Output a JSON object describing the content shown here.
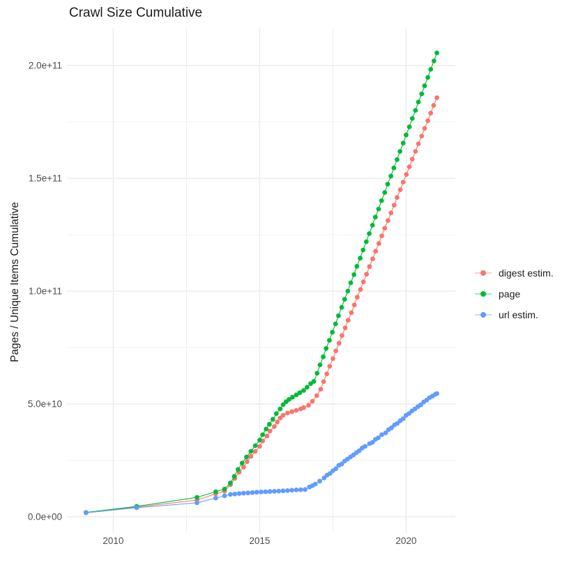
{
  "title": "Crawl Size Cumulative",
  "chart_data": {
    "type": "scatter",
    "title": "Crawl Size Cumulative",
    "xlabel": "",
    "ylabel": "Pages / Unique Items Cumulative",
    "grid": true,
    "legend_position": "right",
    "panel_background": "#FFFFFF",
    "grid_color": "#EBEBEB",
    "xlim": [
      2008.42,
      2021.68
    ],
    "ylim": [
      0,
      215000000000
    ],
    "x_axis": {
      "tick_labels": [
        "2010",
        "2015",
        "2020"
      ],
      "tick_values": [
        2010,
        2015,
        2020
      ],
      "minor_values": [
        2012.5,
        2017.5
      ]
    },
    "y_axis": {
      "tick_labels": [
        "0.0e+00",
        "5.0e+10",
        "1.0e+11",
        "1.5e+11",
        "2.0e+11"
      ],
      "tick_values": [
        0,
        50000000000.0,
        100000000000.0,
        150000000000.0,
        200000000000.0
      ],
      "minor_values": [
        25000000000.0,
        75000000000.0,
        125000000000.0,
        175000000000.0
      ]
    },
    "legend": {
      "items": [
        {
          "label": "digest estim.",
          "color": "#F8766D"
        },
        {
          "label": "page",
          "color": "#00BA38"
        },
        {
          "label": "url estim.",
          "color": "#619CFF"
        }
      ]
    },
    "series": [
      {
        "name": "digest estim.",
        "color": "#F8766D",
        "points": [
          [
            2009.07,
            1800000000.0
          ],
          [
            2010.8,
            4300000000.0
          ],
          [
            2012.86,
            7400000000.0
          ],
          [
            2013.5,
            10200000000.0
          ],
          [
            2013.8,
            11400000000.0
          ],
          [
            2014.0,
            14200000000.0
          ],
          [
            2014.15,
            17000000000.0
          ],
          [
            2014.3,
            19800000000.0
          ],
          [
            2014.45,
            22000000000.0
          ],
          [
            2014.57,
            24400000000.0
          ],
          [
            2014.7,
            26800000000.0
          ],
          [
            2014.85,
            29000000000.0
          ],
          [
            2015.0,
            31200000000.0
          ],
          [
            2015.1,
            33600000000.0
          ],
          [
            2015.25,
            35800000000.0
          ],
          [
            2015.35,
            38000000000.0
          ],
          [
            2015.5,
            40000000000.0
          ],
          [
            2015.6,
            42000000000.0
          ],
          [
            2015.7,
            43800000000.0
          ],
          [
            2015.8,
            45000000000.0
          ],
          [
            2015.95,
            46000000000.0
          ],
          [
            2016.1,
            46600000000.0
          ],
          [
            2016.25,
            47200000000.0
          ],
          [
            2016.4,
            47800000000.0
          ],
          [
            2016.5,
            48400000000.0
          ],
          [
            2016.67,
            49400000000.0
          ],
          [
            2016.8,
            51200000000.0
          ],
          [
            2016.95,
            53700000000.0
          ],
          [
            2017.08,
            56500000000.0
          ],
          [
            2017.18,
            59900000000.0
          ],
          [
            2017.29,
            63300000000.0
          ],
          [
            2017.39,
            66700000000.0
          ],
          [
            2017.5,
            70100000000.0
          ],
          [
            2017.6,
            73500000000.0
          ],
          [
            2017.71,
            76900000000.0
          ],
          [
            2017.81,
            80300000000.0
          ],
          [
            2017.92,
            83700000000.0
          ],
          [
            2018.02,
            87100000000.0
          ],
          [
            2018.13,
            90500000000.0
          ],
          [
            2018.23,
            93900000000.0
          ],
          [
            2018.33,
            97300000000.0
          ],
          [
            2018.44,
            100700000000.0
          ],
          [
            2018.54,
            104100000000.0
          ],
          [
            2018.65,
            107500000000.0
          ],
          [
            2018.75,
            110900000000.0
          ],
          [
            2018.86,
            114300000000.0
          ],
          [
            2018.96,
            117700000000.0
          ],
          [
            2019.07,
            121100000000.0
          ],
          [
            2019.17,
            124500000000.0
          ],
          [
            2019.27,
            127900000000.0
          ],
          [
            2019.38,
            131300000000.0
          ],
          [
            2019.48,
            134700000000.0
          ],
          [
            2019.59,
            138100000000.0
          ],
          [
            2019.69,
            141500000000.0
          ],
          [
            2019.8,
            144900000000.0
          ],
          [
            2019.9,
            148300000000.0
          ],
          [
            2020.01,
            151700000000.0
          ],
          [
            2020.11,
            155100000000.0
          ],
          [
            2020.21,
            158500000000.0
          ],
          [
            2020.32,
            161900000000.0
          ],
          [
            2020.42,
            165300000000.0
          ],
          [
            2020.53,
            168700000000.0
          ],
          [
            2020.63,
            172100000000.0
          ],
          [
            2020.74,
            175500000000.0
          ],
          [
            2020.84,
            178900000000.0
          ],
          [
            2020.94,
            182300000000.0
          ],
          [
            2021.05,
            185700000000.0
          ]
        ]
      },
      {
        "name": "page",
        "color": "#00BA38",
        "points": [
          [
            2009.07,
            1900000000.0
          ],
          [
            2010.8,
            4600000000.0
          ],
          [
            2012.86,
            8600000000.0
          ],
          [
            2013.5,
            11100000000.0
          ],
          [
            2013.8,
            12300000000.0
          ],
          [
            2014.0,
            15000000000.0
          ],
          [
            2014.13,
            17900000000.0
          ],
          [
            2014.26,
            21000000000.0
          ],
          [
            2014.4,
            23800000000.0
          ],
          [
            2014.55,
            26500000000.0
          ],
          [
            2014.7,
            29000000000.0
          ],
          [
            2014.85,
            31500000000.0
          ],
          [
            2015.0,
            34000000000.0
          ],
          [
            2015.1,
            36400000000.0
          ],
          [
            2015.22,
            38900000000.0
          ],
          [
            2015.33,
            41000000000.0
          ],
          [
            2015.45,
            43200000000.0
          ],
          [
            2015.57,
            45700000000.0
          ],
          [
            2015.7,
            47800000000.0
          ],
          [
            2015.8,
            49700000000.0
          ],
          [
            2015.9,
            51000000000.0
          ],
          [
            2016.0,
            52000000000.0
          ],
          [
            2016.12,
            53000000000.0
          ],
          [
            2016.25,
            54000000000.0
          ],
          [
            2016.37,
            55000000000.0
          ],
          [
            2016.5,
            56000000000.0
          ],
          [
            2016.62,
            57400000000.0
          ],
          [
            2016.74,
            59000000000.0
          ],
          [
            2016.85,
            60000000000.0
          ],
          [
            2016.96,
            63600000000.0
          ],
          [
            2017.06,
            67300000000.0
          ],
          [
            2017.17,
            70900000000.0
          ],
          [
            2017.27,
            74600000000.0
          ],
          [
            2017.38,
            78200000000.0
          ],
          [
            2017.48,
            81800000000.0
          ],
          [
            2017.59,
            85500000000.0
          ],
          [
            2017.69,
            89100000000.0
          ],
          [
            2017.8,
            92800000000.0
          ],
          [
            2017.9,
            96400000000.0
          ],
          [
            2018.01,
            100000000000.0
          ],
          [
            2018.11,
            103700000000.0
          ],
          [
            2018.22,
            107300000000.0
          ],
          [
            2018.32,
            111000000000.0
          ],
          [
            2018.43,
            114600000000.0
          ],
          [
            2018.53,
            118200000000.0
          ],
          [
            2018.64,
            121900000000.0
          ],
          [
            2018.74,
            125500000000.0
          ],
          [
            2018.85,
            129200000000.0
          ],
          [
            2018.95,
            132800000000.0
          ],
          [
            2019.06,
            136400000000.0
          ],
          [
            2019.16,
            140100000000.0
          ],
          [
            2019.27,
            143700000000.0
          ],
          [
            2019.37,
            147400000000.0
          ],
          [
            2019.48,
            151000000000.0
          ],
          [
            2019.58,
            154600000000.0
          ],
          [
            2019.69,
            158300000000.0
          ],
          [
            2019.79,
            161900000000.0
          ],
          [
            2019.9,
            165600000000.0
          ],
          [
            2020.0,
            169200000000.0
          ],
          [
            2020.11,
            172800000000.0
          ],
          [
            2020.21,
            176500000000.0
          ],
          [
            2020.32,
            180100000000.0
          ],
          [
            2020.42,
            183800000000.0
          ],
          [
            2020.53,
            187400000000.0
          ],
          [
            2020.63,
            191000000000.0
          ],
          [
            2020.74,
            194700000000.0
          ],
          [
            2020.84,
            198300000000.0
          ],
          [
            2020.95,
            202000000000.0
          ],
          [
            2021.05,
            205600000000.0
          ]
        ]
      },
      {
        "name": "url estim.",
        "color": "#619CFF",
        "points": [
          [
            2009.07,
            1800000000.0
          ],
          [
            2010.8,
            4000000000.0
          ],
          [
            2012.86,
            6200000000.0
          ],
          [
            2013.5,
            8300000000.0
          ],
          [
            2013.8,
            9300000000.0
          ],
          [
            2014.0,
            9900000000.0
          ],
          [
            2014.15,
            10100000000.0
          ],
          [
            2014.3,
            10300000000.0
          ],
          [
            2014.45,
            10450000000.0
          ],
          [
            2014.6,
            10600000000.0
          ],
          [
            2014.75,
            10750000000.0
          ],
          [
            2014.9,
            10900000000.0
          ],
          [
            2015.05,
            11000000000.0
          ],
          [
            2015.2,
            11100000000.0
          ],
          [
            2015.35,
            11200000000.0
          ],
          [
            2015.5,
            11300000000.0
          ],
          [
            2015.65,
            11400000000.0
          ],
          [
            2015.8,
            11500000000.0
          ],
          [
            2015.95,
            11600000000.0
          ],
          [
            2016.1,
            11750000000.0
          ],
          [
            2016.25,
            11900000000.0
          ],
          [
            2016.4,
            12000000000.0
          ],
          [
            2016.55,
            12100000000.0
          ],
          [
            2016.7,
            13200000000.0
          ],
          [
            2016.8,
            13800000000.0
          ],
          [
            2016.9,
            14500000000.0
          ],
          [
            2017.05,
            15800000000.0
          ],
          [
            2017.2,
            17200000000.0
          ],
          [
            2017.3,
            18500000000.0
          ],
          [
            2017.4,
            19200000000.0
          ],
          [
            2017.5,
            20400000000.0
          ],
          [
            2017.6,
            21300000000.0
          ],
          [
            2017.7,
            22800000000.0
          ],
          [
            2017.8,
            23400000000.0
          ],
          [
            2017.9,
            24700000000.0
          ],
          [
            2018.0,
            25600000000.0
          ],
          [
            2018.1,
            26500000000.0
          ],
          [
            2018.2,
            27400000000.0
          ],
          [
            2018.3,
            28400000000.0
          ],
          [
            2018.4,
            29300000000.0
          ],
          [
            2018.5,
            30500000000.0
          ],
          [
            2018.6,
            31200000000.0
          ],
          [
            2018.75,
            32400000000.0
          ],
          [
            2018.85,
            33000000000.0
          ],
          [
            2018.95,
            34300000000.0
          ],
          [
            2019.05,
            35000000000.0
          ],
          [
            2019.17,
            36400000000.0
          ],
          [
            2019.3,
            37200000000.0
          ],
          [
            2019.4,
            38600000000.0
          ],
          [
            2019.5,
            39400000000.0
          ],
          [
            2019.6,
            40700000000.0
          ],
          [
            2019.7,
            41400000000.0
          ],
          [
            2019.8,
            42600000000.0
          ],
          [
            2019.9,
            43500000000.0
          ],
          [
            2020.0,
            45000000000.0
          ],
          [
            2020.1,
            45800000000.0
          ],
          [
            2020.2,
            46900000000.0
          ],
          [
            2020.3,
            47800000000.0
          ],
          [
            2020.4,
            48800000000.0
          ],
          [
            2020.5,
            49600000000.0
          ],
          [
            2020.6,
            50900000000.0
          ],
          [
            2020.7,
            51700000000.0
          ],
          [
            2020.8,
            52800000000.0
          ],
          [
            2020.9,
            53500000000.0
          ],
          [
            2021.0,
            54300000000.0
          ],
          [
            2021.05,
            54600000000.0
          ]
        ]
      }
    ]
  }
}
